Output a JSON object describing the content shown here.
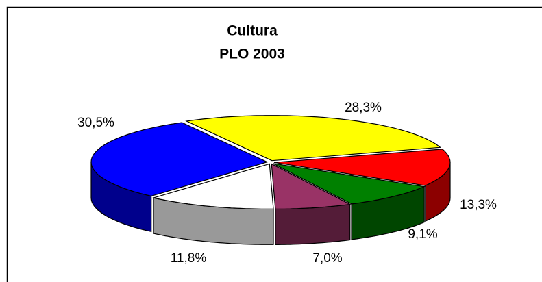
{
  "chart_data": {
    "type": "pie",
    "title": "Cultura",
    "subtitle": "PLO 2003",
    "categories": [
      null,
      null,
      null,
      null,
      null,
      null
    ],
    "values": [
      28.3,
      13.3,
      9.1,
      7.0,
      11.8,
      30.5
    ],
    "value_labels": [
      "28,3%",
      "13,3%",
      "9,1%",
      "7,0%",
      "11,8%",
      "30,5%"
    ],
    "colors": [
      "#ffff00",
      "#ff0000",
      "#008000",
      "#993366",
      "#ffffff",
      "#0000ff"
    ]
  }
}
